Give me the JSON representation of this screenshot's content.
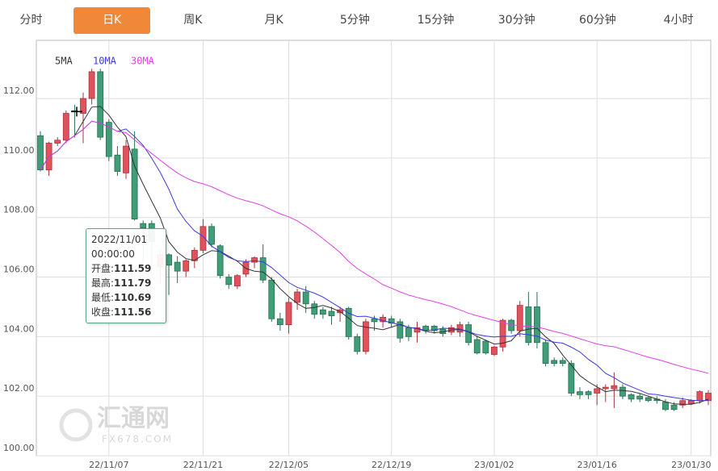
{
  "tabs": [
    "分时",
    "日K",
    "周K",
    "月K",
    "5分钟",
    "15分钟",
    "30分钟",
    "60分钟",
    "4小时"
  ],
  "active_tab": 1,
  "watermark": {
    "name": "汇通网",
    "site": "FX678.COM"
  },
  "chart_data": {
    "type": "candlestick",
    "categories": [
      null,
      null,
      null,
      null,
      null,
      null,
      null,
      null,
      "22/11/07",
      null,
      null,
      null,
      null,
      null,
      null,
      null,
      null,
      null,
      null,
      "22/11/21",
      null,
      null,
      null,
      null,
      null,
      null,
      null,
      null,
      null,
      "22/12/05",
      null,
      null,
      null,
      null,
      null,
      null,
      null,
      null,
      null,
      null,
      null,
      "22/12/19",
      null,
      null,
      null,
      null,
      null,
      null,
      null,
      null,
      null,
      null,
      null,
      "23/01/02",
      null,
      null,
      null,
      null,
      null,
      null,
      null,
      null,
      null,
      null,
      null,
      "23/01/16",
      null,
      null,
      null,
      null,
      null,
      null,
      null,
      null,
      null,
      null,
      "23/01/30",
      null,
      null
    ],
    "open": [
      110.75,
      109.6,
      110.5,
      110.6,
      111.59,
      111.5,
      112.0,
      112.9,
      111.2,
      110.1,
      109.5,
      110.3,
      107.8,
      107.8,
      106.35,
      106.75,
      106.5,
      106.2,
      106.55,
      106.9,
      107.7,
      107.05,
      106.0,
      105.7,
      106.1,
      106.5,
      106.65,
      105.9,
      104.6,
      104.4,
      105.15,
      105.5,
      105.1,
      104.9,
      104.85,
      104.8,
      104.95,
      104.0,
      103.5,
      104.6,
      104.5,
      104.6,
      104.5,
      104.3,
      104.15,
      104.35,
      104.35,
      104.25,
      104.15,
      104.15,
      104.4,
      103.9,
      103.85,
      103.4,
      103.65,
      104.55,
      104.2,
      105.0,
      105.0,
      103.8,
      103.2,
      103.2,
      103.1,
      102.15,
      102.15,
      102.1,
      102.25,
      102.25,
      102.3,
      102.05,
      102.0,
      101.95,
      101.9,
      101.8,
      101.7,
      101.7,
      101.75,
      101.85,
      101.85
    ],
    "high": [
      110.9,
      110.55,
      110.7,
      111.6,
      111.79,
      112.2,
      113.0,
      113.0,
      111.3,
      110.4,
      110.6,
      110.9,
      107.9,
      107.9,
      106.9,
      106.8,
      106.7,
      106.6,
      107.0,
      107.95,
      107.8,
      107.1,
      106.1,
      106.1,
      106.6,
      106.7,
      107.1,
      106.0,
      104.8,
      105.3,
      105.6,
      105.7,
      105.2,
      105.0,
      105.0,
      105.0,
      105.0,
      104.1,
      104.6,
      104.7,
      104.75,
      104.7,
      104.6,
      104.4,
      104.5,
      104.4,
      104.4,
      104.35,
      104.4,
      104.5,
      104.5,
      104.0,
      103.9,
      103.7,
      104.6,
      104.6,
      105.2,
      105.5,
      105.5,
      103.9,
      103.3,
      103.3,
      103.2,
      102.3,
      102.2,
      102.4,
      102.4,
      102.8,
      102.4,
      102.1,
      102.1,
      102.0,
      102.0,
      101.9,
      101.8,
      101.95,
      101.9,
      102.2,
      102.2
    ],
    "low": [
      109.55,
      109.4,
      110.4,
      110.5,
      110.69,
      110.5,
      111.8,
      110.6,
      109.9,
      109.4,
      109.3,
      107.9,
      106.5,
      106.0,
      105.8,
      105.4,
      105.8,
      106.0,
      106.3,
      106.8,
      107.0,
      105.95,
      105.6,
      105.6,
      106.0,
      106.3,
      105.8,
      104.5,
      104.2,
      104.1,
      104.9,
      104.8,
      104.6,
      104.6,
      104.4,
      104.5,
      103.9,
      103.4,
      103.4,
      104.2,
      104.3,
      104.3,
      103.8,
      103.85,
      103.8,
      104.1,
      104.1,
      104.0,
      104.05,
      104.0,
      103.7,
      103.4,
      103.4,
      103.35,
      103.5,
      104.1,
      104.0,
      103.7,
      103.6,
      103.0,
      103.0,
      103.0,
      102.0,
      101.9,
      101.9,
      101.7,
      101.8,
      101.6,
      101.9,
      101.8,
      101.8,
      101.8,
      101.75,
      101.5,
      101.5,
      101.6,
      101.7,
      101.75,
      101.7
    ],
    "close": [
      109.6,
      110.5,
      110.6,
      111.5,
      111.56,
      112.0,
      112.9,
      110.7,
      110.05,
      109.55,
      110.4,
      107.95,
      107.65,
      107.2,
      106.75,
      106.4,
      106.2,
      106.55,
      106.9,
      107.7,
      107.1,
      106.05,
      105.75,
      106.05,
      106.5,
      106.65,
      105.9,
      104.6,
      104.4,
      105.15,
      105.5,
      105.1,
      104.75,
      104.75,
      104.7,
      104.9,
      104.0,
      103.5,
      104.5,
      104.5,
      104.65,
      104.45,
      103.95,
      104.0,
      104.3,
      104.2,
      104.2,
      104.1,
      104.3,
      104.4,
      103.8,
      103.45,
      103.45,
      103.65,
      104.55,
      104.2,
      105.05,
      103.8,
      103.8,
      103.1,
      103.1,
      103.1,
      102.1,
      102.05,
      102.05,
      102.25,
      102.3,
      102.35,
      102.0,
      101.9,
      101.9,
      101.85,
      101.85,
      101.55,
      101.55,
      101.85,
      101.85,
      102.15,
      102.1
    ],
    "up_color": "#e0525c",
    "down_color": "#3f9e78",
    "moving_averages": [
      {
        "name": "5MA",
        "period": 5,
        "color": "#333333"
      },
      {
        "name": "10MA",
        "period": 10,
        "color": "#3a3ae0"
      },
      {
        "name": "30MA",
        "period": 30,
        "color": "#e040e0"
      }
    ],
    "ylim": [
      100,
      113.9
    ],
    "yticks": [
      {
        "value": 100,
        "label": "100.00"
      },
      {
        "value": 102,
        "label": "102.00"
      },
      {
        "value": 104,
        "label": "104.00"
      },
      {
        "value": 106,
        "label": "106.00"
      },
      {
        "value": 108,
        "label": "108.00"
      },
      {
        "value": 110,
        "label": "110.00"
      },
      {
        "value": 112,
        "label": "112.00"
      }
    ],
    "grid": true,
    "tooltip": {
      "date": "2022/11/01",
      "time": "00:00:00",
      "items": [
        {
          "label": "开盘:",
          "value": "111.59"
        },
        {
          "label": "最高:",
          "value": "111.79"
        },
        {
          "label": "最低:",
          "value": "110.69"
        },
        {
          "label": "收盘:",
          "value": "111.56"
        }
      ]
    }
  }
}
